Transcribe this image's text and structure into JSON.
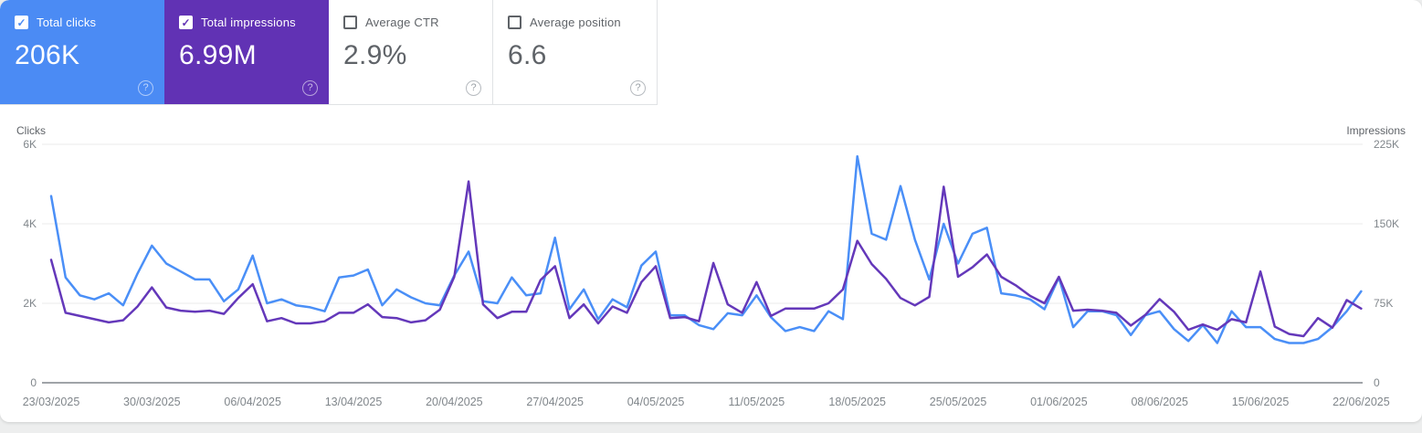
{
  "cards": [
    {
      "label": "Total clicks",
      "value": "206K",
      "checked": true,
      "bg": "#4b8bf4",
      "accent": "#4b8bf4"
    },
    {
      "label": "Total impressions",
      "value": "6.99M",
      "checked": true,
      "bg": "#6132b4",
      "accent": "#6132b4"
    },
    {
      "label": "Average CTR",
      "value": "2.9%",
      "checked": false,
      "bg": "",
      "accent": "#5f6368"
    },
    {
      "label": "Average position",
      "value": "6.6",
      "checked": false,
      "bg": "",
      "accent": "#5f6368"
    }
  ],
  "help_icon_glyph": "?",
  "chart_data": {
    "type": "line",
    "left_axis_title": "Clicks",
    "right_axis_title": "Impressions",
    "y_left_ticks": [
      "6K",
      "4K",
      "2K",
      "0"
    ],
    "y_right_ticks": [
      "225K",
      "150K",
      "75K",
      "0"
    ],
    "y_left_max": 6000,
    "y_right_max": 225000,
    "grid": true,
    "x_start_date": "23/03/2025",
    "x_end_date": "22/06/2025",
    "x_tick_labels": [
      "23/03/2025",
      "30/03/2025",
      "06/04/2025",
      "13/04/2025",
      "20/04/2025",
      "27/04/2025",
      "04/05/2025",
      "11/05/2025",
      "18/05/2025",
      "25/05/2025",
      "01/06/2025",
      "08/06/2025",
      "15/06/2025",
      "22/06/2025"
    ],
    "series": [
      {
        "name": "Clicks",
        "color": "#4a8ff7",
        "axis": "left",
        "values": [
          4700,
          2650,
          2200,
          2100,
          2250,
          1950,
          2750,
          3450,
          3000,
          2800,
          2600,
          2600,
          2050,
          2350,
          3200,
          2000,
          2100,
          1950,
          1900,
          1800,
          2650,
          2700,
          2850,
          1950,
          2350,
          2150,
          2000,
          1950,
          2700,
          3300,
          2050,
          2000,
          2650,
          2200,
          2250,
          3650,
          1850,
          2350,
          1600,
          2100,
          1900,
          2950,
          3300,
          1700,
          1700,
          1450,
          1350,
          1750,
          1700,
          2200,
          1650,
          1300,
          1400,
          1300,
          1800,
          1600,
          5700,
          3750,
          3600,
          4950,
          3600,
          2600,
          4000,
          3000,
          3750,
          3900,
          2250,
          2200,
          2100,
          1850,
          2650,
          1400,
          1800,
          1800,
          1700,
          1200,
          1700,
          1800,
          1350,
          1050,
          1450,
          1000,
          1800,
          1400,
          1400,
          1100,
          1000,
          1000,
          1100,
          1400,
          1800,
          2300
        ]
      },
      {
        "name": "Impressions",
        "color": "#6438ba",
        "axis": "right",
        "values": [
          116000,
          66000,
          63000,
          60000,
          57000,
          59000,
          72000,
          90000,
          71000,
          68000,
          67000,
          68000,
          65000,
          80000,
          93000,
          58000,
          61000,
          56000,
          56000,
          58000,
          66000,
          66000,
          74000,
          62000,
          61000,
          57000,
          59000,
          69000,
          100000,
          190000,
          74000,
          61000,
          67000,
          67000,
          97000,
          110000,
          61000,
          74000,
          56000,
          72000,
          66000,
          95000,
          110000,
          61000,
          62000,
          58000,
          113000,
          74000,
          66000,
          95000,
          63000,
          70000,
          70000,
          70000,
          75000,
          88000,
          134000,
          112000,
          98000,
          80000,
          73000,
          81000,
          185000,
          100000,
          109000,
          121000,
          100000,
          92000,
          82000,
          75000,
          100000,
          68000,
          69000,
          68000,
          66000,
          54000,
          64000,
          79000,
          67000,
          50000,
          55000,
          50000,
          60000,
          57000,
          105000,
          53000,
          46000,
          44000,
          61000,
          52000,
          78000,
          70000
        ]
      }
    ]
  }
}
